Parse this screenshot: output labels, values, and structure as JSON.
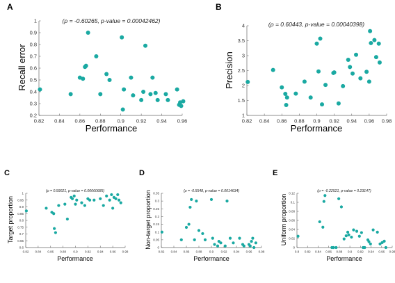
{
  "colors": {
    "marker": "#1aa9a2",
    "axis": "#666666"
  },
  "chart_data": [
    {
      "type": "scatter",
      "panel_label": "A",
      "title": "(ρ = -0.60265, p-value = 0.00042462)",
      "xlabel": "Performance",
      "ylabel": "Recall error",
      "xlim": [
        0.82,
        0.96
      ],
      "ylim": [
        0.2,
        1.0
      ],
      "xticks": [
        "0.82",
        "0.84",
        "0.86",
        "0.88",
        "0.9",
        "0.92",
        "0.94",
        "0.96"
      ],
      "yticks": [
        "0.2",
        "0.3",
        "0.4",
        "0.5",
        "0.6",
        "0.7",
        "0.8",
        "0.9",
        "1"
      ],
      "grid": false,
      "x": [
        0.821,
        0.851,
        0.86,
        0.863,
        0.865,
        0.866,
        0.868,
        0.876,
        0.88,
        0.886,
        0.889,
        0.901,
        0.902,
        0.903,
        0.91,
        0.912,
        0.92,
        0.922,
        0.924,
        0.929,
        0.931,
        0.934,
        0.936,
        0.944,
        0.946,
        0.955,
        0.957,
        0.958,
        0.959,
        0.961
      ],
      "y": [
        0.42,
        0.38,
        0.52,
        0.51,
        0.61,
        0.62,
        0.9,
        0.7,
        0.38,
        0.55,
        0.5,
        0.86,
        0.25,
        0.42,
        0.52,
        0.37,
        0.33,
        0.4,
        0.79,
        0.38,
        0.52,
        0.39,
        0.33,
        0.38,
        0.33,
        0.42,
        0.29,
        0.31,
        0.28,
        0.32
      ]
    },
    {
      "type": "scatter",
      "panel_label": "B",
      "title": "(ρ = 0.60443, p-value = 0.00040398)",
      "xlabel": "Performance",
      "ylabel": "Precision",
      "xlim": [
        0.82,
        0.98
      ],
      "ylim": [
        1.0,
        4.0
      ],
      "xticks": [
        "0.82",
        "0.84",
        "0.86",
        "0.88",
        "0.9",
        "0.92",
        "0.94",
        "0.96",
        "0.98"
      ],
      "yticks": [
        "1",
        "1.5",
        "2",
        "2.5",
        "3",
        "3.5",
        "4"
      ],
      "grid": false,
      "x": [
        0.821,
        0.85,
        0.86,
        0.864,
        0.865,
        0.866,
        0.876,
        0.886,
        0.893,
        0.9,
        0.902,
        0.904,
        0.906,
        0.91,
        0.919,
        0.92,
        0.925,
        0.93,
        0.936,
        0.938,
        0.941,
        0.945,
        0.95,
        0.957,
        0.96,
        0.961,
        0.962,
        0.966,
        0.968,
        0.971,
        0.972
      ],
      "y": [
        2.12,
        2.52,
        1.94,
        1.72,
        1.35,
        1.6,
        1.73,
        2.13,
        1.6,
        3.4,
        2.47,
        3.57,
        1.37,
        2.02,
        2.42,
        2.44,
        1.4,
        1.98,
        2.86,
        2.62,
        2.4,
        3.03,
        2.24,
        2.46,
        2.13,
        3.82,
        3.42,
        3.52,
        2.95,
        3.4,
        2.77
      ]
    },
    {
      "type": "scatter",
      "panel_label": "C",
      "title": "(ρ = 0.59021, p-value = 0.00060685)",
      "xlabel": "Performance",
      "ylabel": "Target proportion",
      "xlim": [
        0.82,
        0.98
      ],
      "ylim": [
        0.6,
        1.0
      ],
      "xticks": [
        "0.82",
        "0.84",
        "0.86",
        "0.88",
        "0.9",
        "0.92",
        "0.94",
        "0.96",
        "0.98"
      ],
      "yticks": [
        "0.6",
        "0.65",
        "0.7",
        "0.75",
        "0.8",
        "0.85",
        "0.9",
        "0.95",
        "1"
      ],
      "grid": false,
      "x": [
        0.821,
        0.853,
        0.862,
        0.865,
        0.866,
        0.868,
        0.873,
        0.883,
        0.887,
        0.893,
        0.895,
        0.898,
        0.9,
        0.902,
        0.91,
        0.915,
        0.92,
        0.923,
        0.93,
        0.94,
        0.945,
        0.95,
        0.955,
        0.958,
        0.96,
        0.962,
        0.965,
        0.968,
        0.97,
        0.973
      ],
      "y": [
        0.87,
        0.89,
        0.86,
        0.85,
        0.74,
        0.71,
        0.91,
        0.92,
        0.81,
        0.97,
        0.96,
        0.98,
        0.92,
        0.95,
        0.93,
        0.91,
        0.96,
        0.95,
        0.95,
        0.96,
        0.91,
        0.98,
        0.95,
        0.99,
        0.89,
        0.97,
        0.96,
        0.99,
        0.95,
        0.93
      ]
    },
    {
      "type": "scatter",
      "panel_label": "D",
      "title": "(ρ = -0.5548, p-value = 0.0014634)",
      "xlabel": "Performance",
      "ylabel": "Non-target proportion",
      "xlim": [
        0.82,
        0.98
      ],
      "ylim": [
        0,
        0.35
      ],
      "xticks": [
        "0.82",
        "0.84",
        "0.86",
        "0.88",
        "0.9",
        "0.92",
        "0.94",
        "0.96",
        "0.98"
      ],
      "yticks": [
        "0",
        "0.05",
        "0.1",
        "0.15",
        "0.2",
        "0.25",
        "0.3",
        "0.35"
      ],
      "grid": false,
      "x": [
        0.821,
        0.852,
        0.86,
        0.864,
        0.866,
        0.868,
        0.873,
        0.876,
        0.88,
        0.886,
        0.89,
        0.9,
        0.902,
        0.905,
        0.91,
        0.912,
        0.915,
        0.922,
        0.925,
        0.93,
        0.935,
        0.945,
        0.95,
        0.952,
        0.96,
        0.962,
        0.964,
        0.966,
        0.968,
        0.971
      ],
      "y": [
        0.1,
        0.05,
        0.13,
        0.15,
        0.26,
        0.31,
        0.05,
        0.3,
        0.11,
        0.09,
        0.05,
        0.31,
        0.06,
        0.02,
        0.01,
        0.04,
        0.03,
        0.01,
        0.3,
        0.06,
        0.03,
        0.06,
        0.02,
        0.01,
        0.02,
        0.01,
        0.04,
        0.06,
        0.0,
        0.03
      ]
    },
    {
      "type": "scatter",
      "panel_label": "E",
      "title": "(ρ = -0.22521, p-value = 0.23147)",
      "xlabel": "Performance",
      "ylabel": "Uniform proportion",
      "xlim": [
        0.8,
        0.98
      ],
      "ylim": [
        0,
        0.12
      ],
      "xticks": [
        "0.8",
        "0.82",
        "0.84",
        "0.86",
        "0.88",
        "0.9",
        "0.92",
        "0.94",
        "0.96",
        "0.98"
      ],
      "yticks": [
        "0",
        "0.02",
        "0.04",
        "0.06",
        "0.08",
        "0.1",
        "0.12"
      ],
      "grid": false,
      "x": [
        0.802,
        0.843,
        0.849,
        0.851,
        0.853,
        0.866,
        0.869,
        0.874,
        0.879,
        0.884,
        0.889,
        0.893,
        0.896,
        0.898,
        0.903,
        0.907,
        0.913,
        0.918,
        0.922,
        0.925,
        0.928,
        0.934,
        0.936,
        0.939,
        0.944,
        0.952,
        0.957,
        0.961,
        0.965,
        0.968
      ],
      "y": [
        0.025,
        0.057,
        0.045,
        0.102,
        0.115,
        0.0,
        0.0,
        0.0,
        0.108,
        0.09,
        0.019,
        0.026,
        0.034,
        0.028,
        0.023,
        0.039,
        0.036,
        0.025,
        0.033,
        0.0,
        0.0,
        0.017,
        0.013,
        0.008,
        0.039,
        0.034,
        0.008,
        0.011,
        0.014,
        0.0
      ]
    }
  ]
}
